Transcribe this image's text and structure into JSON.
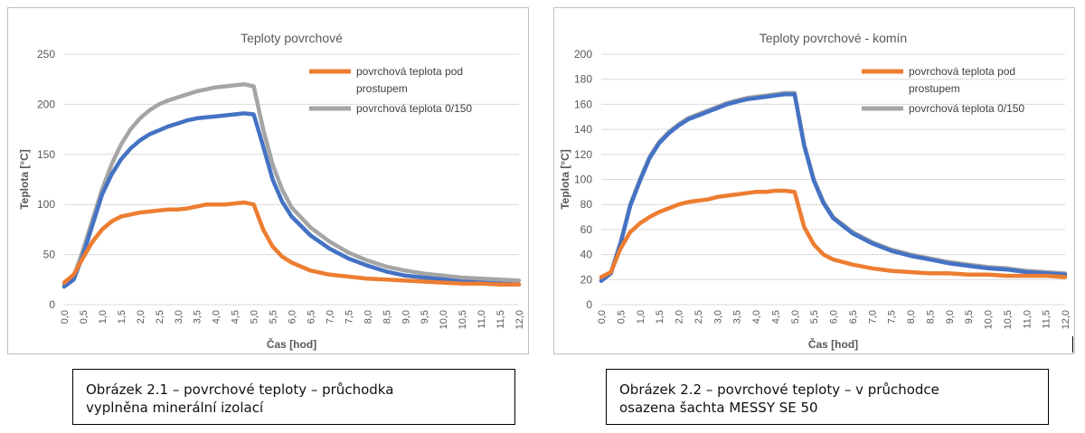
{
  "chart_data": [
    {
      "type": "line",
      "title": "Teploty povrchové",
      "xlabel": "Čas [hod]",
      "ylabel": "Teplota [°C]",
      "xlim": [
        0,
        12
      ],
      "ylim": [
        0,
        250
      ],
      "yticks": [
        0,
        50,
        100,
        150,
        200,
        250
      ],
      "xtick_labels": [
        "0,0",
        "0,5",
        "1,0",
        "1,5",
        "2,0",
        "2,5",
        "3,0",
        "3,5",
        "4,0",
        "4,5",
        "5,0",
        "5,5",
        "6,0",
        "6,5",
        "7,0",
        "7,5",
        "8,0",
        "8,5",
        "9,0",
        "9,5",
        "10,0",
        "10,5",
        "11,0",
        "11,5",
        "12,0"
      ],
      "grid": "horizontal",
      "legend": "top-right",
      "legend_entries": [
        {
          "label_lines": [
            "povrchová teplota pod",
            "prostupem"
          ],
          "color": "#ED7D31"
        },
        {
          "label_lines": [
            "povrchová teplota 0/150"
          ],
          "color": "#A5A5A5"
        }
      ],
      "series": [
        {
          "color": "#A5A5A5",
          "x": [
            0,
            0.25,
            0.5,
            0.75,
            1,
            1.25,
            1.5,
            1.75,
            2,
            2.25,
            2.5,
            2.75,
            3,
            3.25,
            3.5,
            3.75,
            4,
            4.25,
            4.5,
            4.75,
            5,
            5.25,
            5.5,
            5.75,
            6,
            6.5,
            7,
            7.5,
            8,
            8.5,
            9,
            9.5,
            10,
            10.5,
            11,
            11.5,
            12
          ],
          "y": [
            20,
            28,
            55,
            85,
            115,
            140,
            160,
            175,
            186,
            194,
            200,
            204,
            207,
            210,
            213,
            215,
            217,
            218,
            219,
            220,
            218,
            175,
            140,
            115,
            97,
            77,
            63,
            52,
            44,
            38,
            34,
            31,
            29,
            27,
            26,
            25,
            24
          ]
        },
        {
          "color": "#4472C4",
          "x": [
            0,
            0.25,
            0.5,
            0.75,
            1,
            1.25,
            1.5,
            1.75,
            2,
            2.25,
            2.5,
            2.75,
            3,
            3.25,
            3.5,
            3.75,
            4,
            4.25,
            4.5,
            4.75,
            5,
            5.25,
            5.5,
            5.75,
            6,
            6.5,
            7,
            7.5,
            8,
            8.5,
            9,
            9.5,
            10,
            10.5,
            11,
            11.5,
            12
          ],
          "y": [
            18,
            25,
            50,
            80,
            110,
            130,
            145,
            156,
            164,
            170,
            174,
            178,
            181,
            184,
            186,
            187,
            188,
            189,
            190,
            191,
            190,
            158,
            125,
            103,
            88,
            69,
            56,
            46,
            39,
            33,
            29,
            27,
            25,
            23,
            22,
            21,
            20
          ]
        },
        {
          "color": "#ED7D31",
          "x": [
            0,
            0.25,
            0.5,
            0.75,
            1,
            1.25,
            1.5,
            1.75,
            2,
            2.25,
            2.5,
            2.75,
            3,
            3.25,
            3.5,
            3.75,
            4,
            4.25,
            4.5,
            4.75,
            5,
            5.25,
            5.5,
            5.75,
            6,
            6.5,
            7,
            7.5,
            8,
            8.5,
            9,
            9.5,
            10,
            10.5,
            11,
            11.5,
            12
          ],
          "y": [
            22,
            30,
            47,
            63,
            75,
            83,
            88,
            90,
            92,
            93,
            94,
            95,
            95,
            96,
            98,
            100,
            100,
            100,
            101,
            102,
            100,
            75,
            58,
            48,
            42,
            34,
            30,
            28,
            26,
            25,
            24,
            23,
            22,
            21,
            21,
            20,
            20
          ]
        }
      ]
    },
    {
      "type": "line",
      "title": "Teploty povrchové - komín",
      "xlabel": "Čas [hod]",
      "ylabel": "Teplota [°C]",
      "xlim": [
        0,
        12
      ],
      "ylim": [
        0,
        200
      ],
      "yticks": [
        0,
        20,
        40,
        60,
        80,
        100,
        120,
        140,
        160,
        180,
        200
      ],
      "xtick_labels": [
        "0,0",
        "0,5",
        "1,0",
        "1,5",
        "2,0",
        "2,5",
        "3,0",
        "3,5",
        "4,0",
        "4,5",
        "5,0",
        "5,5",
        "6,0",
        "6,5",
        "7,0",
        "7,5",
        "8,0",
        "8,5",
        "9,0",
        "9,5",
        "10,0",
        "10,5",
        "11,0",
        "11,5",
        "12,0"
      ],
      "grid": "horizontal",
      "legend": "top-right",
      "legend_entries": [
        {
          "label_lines": [
            "povrchová teplota pod",
            "prostupem"
          ],
          "color": "#ED7D31"
        },
        {
          "label_lines": [
            "povrchová teplota 0/150"
          ],
          "color": "#A5A5A5"
        }
      ],
      "series": [
        {
          "color": "#A5A5A5",
          "x": [
            0,
            0.25,
            0.5,
            0.75,
            1,
            1.25,
            1.5,
            1.75,
            2,
            2.25,
            2.5,
            2.75,
            3,
            3.25,
            3.5,
            3.75,
            4,
            4.25,
            4.5,
            4.75,
            5,
            5.25,
            5.5,
            5.75,
            6,
            6.5,
            7,
            7.5,
            8,
            8.5,
            9,
            9.5,
            10,
            10.5,
            11,
            11.5,
            12
          ],
          "y": [
            20,
            26,
            50,
            80,
            100,
            118,
            130,
            138,
            144,
            149,
            152,
            155,
            158,
            161,
            163,
            165,
            166,
            167,
            168,
            169,
            169,
            128,
            100,
            82,
            70,
            58,
            50,
            44,
            40,
            37,
            34,
            32,
            30,
            29,
            27,
            26,
            25
          ]
        },
        {
          "color": "#4472C4",
          "x": [
            0,
            0.25,
            0.5,
            0.75,
            1,
            1.25,
            1.5,
            1.75,
            2,
            2.25,
            2.5,
            2.75,
            3,
            3.25,
            3.5,
            3.75,
            4,
            4.25,
            4.5,
            4.75,
            5,
            5.25,
            5.5,
            5.75,
            6,
            6.5,
            7,
            7.5,
            8,
            8.5,
            9,
            9.5,
            10,
            10.5,
            11,
            11.5,
            12
          ],
          "y": [
            19,
            25,
            49,
            79,
            99,
            117,
            129,
            137,
            143,
            148,
            151,
            154,
            157,
            160,
            162,
            164,
            165,
            166,
            167,
            168,
            168,
            127,
            99,
            81,
            69,
            57,
            49,
            43,
            39,
            36,
            33,
            31,
            29,
            28,
            26,
            25,
            24
          ]
        },
        {
          "color": "#ED7D31",
          "x": [
            0,
            0.25,
            0.5,
            0.75,
            1,
            1.25,
            1.5,
            1.75,
            2,
            2.25,
            2.5,
            2.75,
            3,
            3.25,
            3.5,
            3.75,
            4,
            4.25,
            4.5,
            4.75,
            5,
            5.25,
            5.5,
            5.75,
            6,
            6.5,
            7,
            7.5,
            8,
            8.5,
            9,
            9.5,
            10,
            10.5,
            11,
            11.5,
            12
          ],
          "y": [
            22,
            26,
            45,
            58,
            65,
            70,
            74,
            77,
            80,
            82,
            83,
            84,
            86,
            87,
            88,
            89,
            90,
            90,
            91,
            91,
            90,
            62,
            48,
            40,
            36,
            32,
            29,
            27,
            26,
            25,
            25,
            24,
            24,
            23,
            23,
            23,
            22
          ]
        }
      ]
    }
  ],
  "captions": [
    {
      "lines": [
        "Obrázek 2.1 – povrchové teploty – průchodka",
        "vyplněna minerální izolací"
      ]
    },
    {
      "lines": [
        "Obrázek 2.2 – povrchové teploty – v průchodce",
        "osazena šachta MESSY SE 50"
      ]
    }
  ]
}
